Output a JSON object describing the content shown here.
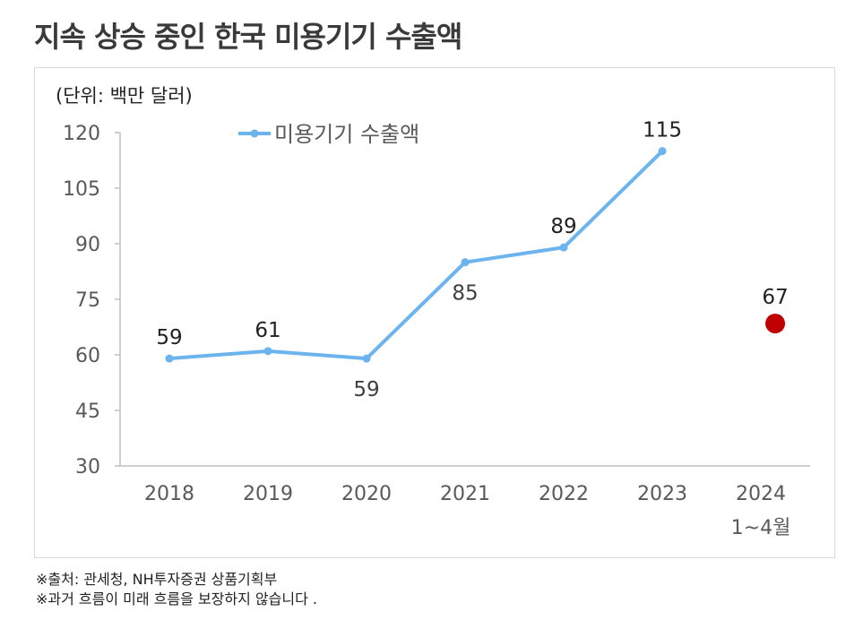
{
  "title": "지속 상승 중인 한국 미용기기 수출액",
  "unit_note": "(단위: 백만 달러)",
  "source_lines": [
    "※출처: 관세청, NH투자증권 상품기획부",
    "※과거 흐름이 미래 흐름을 보장하지 않습니다 ."
  ],
  "colors": {
    "series": "#6cb4ee",
    "highlight": "#c00000",
    "axis": "#bfbfbf"
  },
  "chart_data": {
    "type": "line",
    "categories": [
      "2018",
      "2019",
      "2020",
      "2021",
      "2022",
      "2023",
      "2024\n1~4월"
    ],
    "category_lines": [
      [
        "2018"
      ],
      [
        "2019"
      ],
      [
        "2020"
      ],
      [
        "2021"
      ],
      [
        "2022"
      ],
      [
        "2023"
      ],
      [
        "2024",
        "1~4월"
      ]
    ],
    "series": [
      {
        "name": "미용기기 수출액",
        "values": [
          59,
          61,
          59,
          85,
          89,
          115,
          null
        ]
      }
    ],
    "highlight_point": {
      "category": "2024\n1~4월",
      "value": 67,
      "label": "67"
    },
    "data_labels": [
      "59",
      "61",
      "59",
      "85",
      "89",
      "115"
    ],
    "ylim": [
      30,
      120
    ],
    "yticks": [
      30,
      45,
      60,
      75,
      90,
      105,
      120
    ],
    "legend": "top-left",
    "xlabel": "",
    "ylabel": ""
  }
}
